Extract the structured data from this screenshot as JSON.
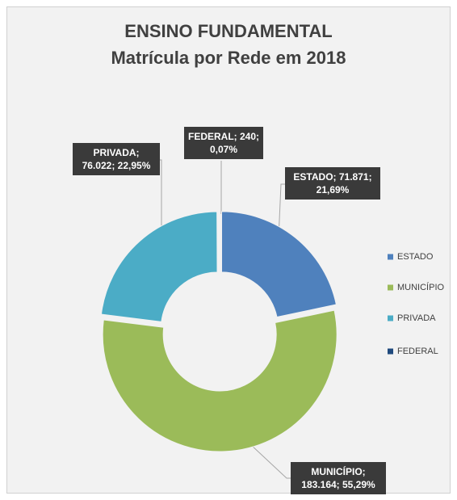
{
  "chart_data": {
    "type": "donut",
    "title": "ENSINO FUNDAMENTAL",
    "subtitle": "Matrícula por Rede em 2018",
    "categories": [
      "ESTADO",
      "MUNICÍPIO",
      "PRIVADA",
      "FEDERAL"
    ],
    "values": [
      71871,
      183164,
      76022,
      240
    ],
    "value_labels": [
      "ESTADO; 71.871; 21,69%",
      "MUNICÍPIO; 183.164; 55,29%",
      "PRIVADA; 76.022; 22,95%",
      "FEDERAL; 240; 0,07%"
    ],
    "colors": [
      "#4f81bd",
      "#9bbb59",
      "#4bacc6",
      "#1f497d"
    ],
    "legend": "right"
  }
}
